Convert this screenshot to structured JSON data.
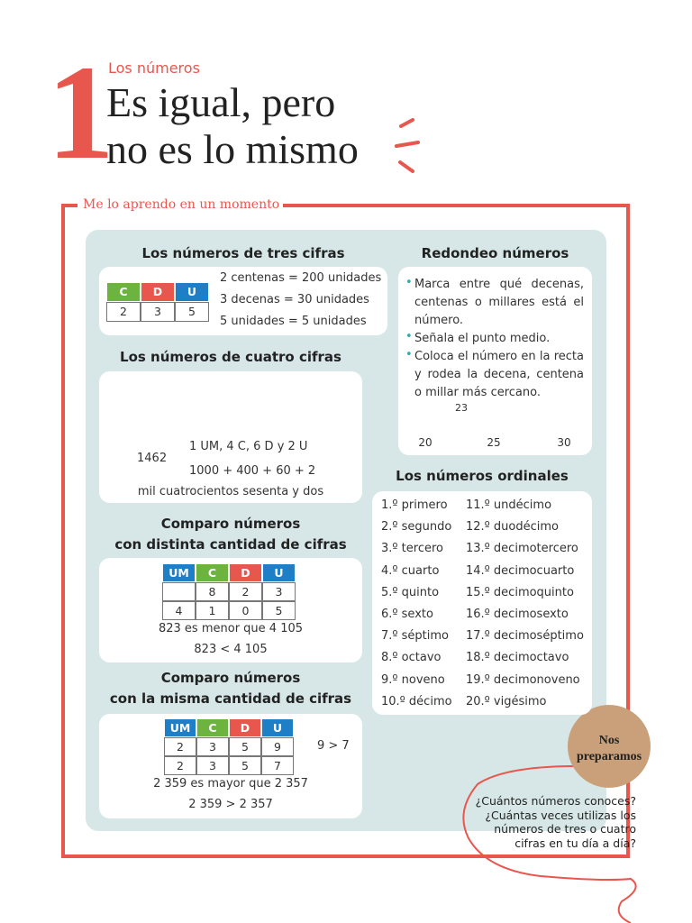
{
  "header": {
    "number": "1",
    "kicker": "Los números",
    "title_lines": [
      "Es igual, pero",
      "no es lo mismo"
    ]
  },
  "section_label": "Me lo aprendo en un momento",
  "three_digits": {
    "title": "Los números de tres cifras",
    "table_header": [
      "C",
      "D",
      "U"
    ],
    "table_row": [
      "2",
      "3",
      "5"
    ],
    "lines": [
      "2 centenas = 200 unidades",
      "3 decenas = 30 unidades",
      "5 unidades = 5 unidades"
    ]
  },
  "four_digits": {
    "title": "Los números de cuatro cifras",
    "number": "1462",
    "decomposition": [
      "1 UM, 4 C, 6 D y 2 U",
      "1000 + 400 + 60 + 2"
    ],
    "words": "mil cuatrocientos sesenta y dos"
  },
  "compare_diff": {
    "title_lines": [
      "Comparo números",
      "con distinta cantidad de cifras"
    ],
    "table_header": [
      "UM",
      "C",
      "D",
      "U"
    ],
    "rows": [
      [
        null,
        "8",
        "2",
        "3"
      ],
      [
        "4",
        "1",
        "0",
        "5"
      ]
    ],
    "statements": [
      "823 es menor que 4 105",
      "823 < 4 105"
    ]
  },
  "compare_same": {
    "title_lines": [
      "Comparo números",
      "con la misma cantidad de cifras"
    ],
    "table_header": [
      "UM",
      "C",
      "D",
      "U"
    ],
    "rows": [
      [
        "2",
        "3",
        "5",
        "9"
      ],
      [
        "2",
        "3",
        "5",
        "7"
      ]
    ],
    "note": "9 > 7",
    "statements": [
      "2 359 es mayor que 2 357",
      "2 359 > 2 357"
    ]
  },
  "rounding": {
    "title": "Redondeo números",
    "bullets": [
      "Marca entre qué decenas, centenas o millares está el número.",
      "Señala el punto medio.",
      "Coloca el número en la recta y rodea la decena, centena o millar más cercano."
    ],
    "number_line": {
      "marked": "23",
      "ticks": [
        "20",
        "25",
        "30"
      ]
    }
  },
  "ordinals": {
    "title": "Los números ordinales",
    "items": [
      "1.º primero",
      "2.º segundo",
      "3.º tercero",
      "4.º cuarto",
      "5.º quinto",
      "6.º sexto",
      "7.º séptimo",
      "8.º octavo",
      "9.º noveno",
      "10.º décimo",
      "11.º undécimo",
      "12.º duodécimo",
      "13.º decimotercero",
      "14.º decimocuarto",
      "15.º decimoquinto",
      "16.º decimosexto",
      "17.º decimoséptimo",
      "18.º decimoctavo",
      "19.º decimonoveno",
      "20.º vigésimo"
    ]
  },
  "badge": {
    "lines": [
      "Nos",
      "preparamos"
    ]
  },
  "questions": [
    "¿Cuántos números conoces?",
    "¿Cuántas veces utilizas los",
    "números de tres o cuatro",
    "cifras en tu día a día?"
  ]
}
